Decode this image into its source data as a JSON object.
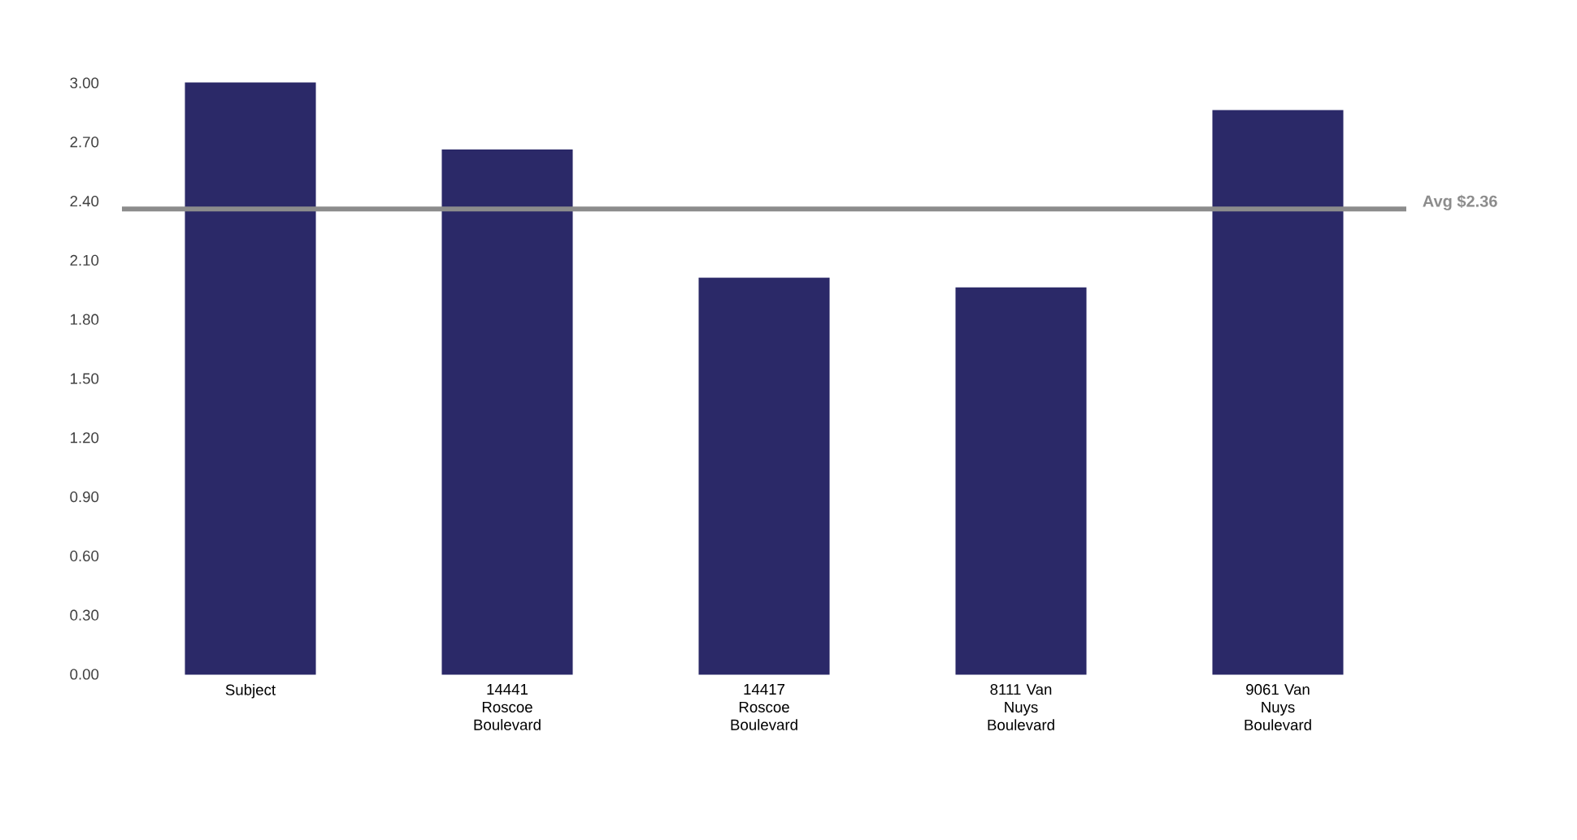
{
  "chart_data": {
    "type": "bar",
    "categories": [
      "Subject",
      "14441 Roscoe Boulevard",
      "14417 Roscoe Boulevard",
      "8111 Van Nuys Boulevard",
      "9061 Van Nuys Boulevard"
    ],
    "values": [
      3.0,
      2.66,
      2.01,
      1.96,
      2.86
    ],
    "color": "#2b2968",
    "ylim": [
      0,
      3
    ],
    "yticks": [
      {
        "value": 0,
        "label": "0.00"
      },
      {
        "value": 0.3,
        "label": "0.30"
      },
      {
        "value": 0.6,
        "label": "0.60"
      },
      {
        "value": 0.9,
        "label": "0.90"
      },
      {
        "value": 1.2,
        "label": "1.20"
      },
      {
        "value": 1.5,
        "label": "1.50"
      },
      {
        "value": 1.8,
        "label": "1.80"
      },
      {
        "value": 2.1,
        "label": "2.10"
      },
      {
        "value": 2.4,
        "label": "2.40"
      },
      {
        "value": 2.7,
        "label": "2.70"
      },
      {
        "value": 3,
        "label": "3.00"
      }
    ],
    "ref_lines": [
      {
        "axis": "y",
        "value": 2.36,
        "label": "Avg $2.36",
        "color": "#8c8c8c"
      }
    ]
  }
}
